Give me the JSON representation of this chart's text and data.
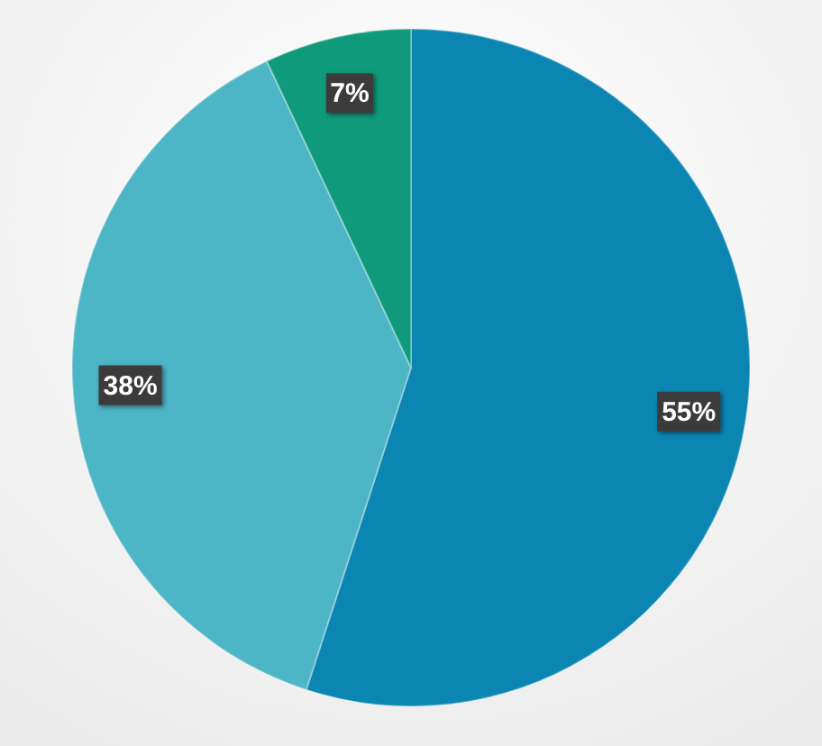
{
  "chart_data": {
    "type": "pie",
    "categories": [
      null,
      null,
      null
    ],
    "values": [
      55,
      38,
      7
    ],
    "colors": [
      "#0b86b3",
      "#4cb5c6",
      "#0f9a7b"
    ],
    "value_labels": [
      "55%",
      "38%",
      "7%"
    ]
  }
}
